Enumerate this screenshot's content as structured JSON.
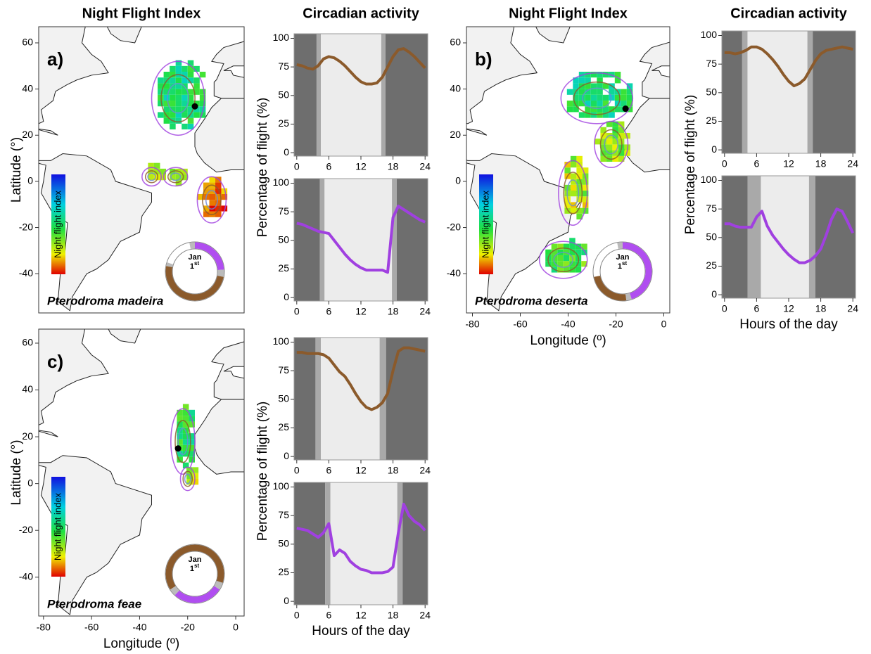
{
  "chart_data": [
    {
      "type": "map",
      "title": "Night Flight Index",
      "panel_label": "a)",
      "species": "Pterodroma madeira",
      "colorbar_label": "Night flight index",
      "ring_label": [
        "Jan",
        "1",
        "st"
      ],
      "ylabel": "Latitude (°)",
      "xlim": [
        -82,
        3.5
      ],
      "ylim": [
        -57,
        67
      ],
      "yticks": [
        60,
        40,
        20,
        0,
        -20,
        -40
      ]
    },
    {
      "type": "line",
      "title": "Circadian activity",
      "ylabel": "Percentage of flight (%)",
      "xlim": [
        -0.5,
        24.5
      ],
      "ylim": [
        -3,
        104
      ],
      "xticks": [
        0,
        6,
        12,
        18,
        24
      ],
      "yticks": [
        0,
        25,
        50,
        75,
        100
      ],
      "twilight": [
        3.7,
        4.5,
        15.8,
        16.6
      ],
      "x": [
        0,
        1,
        2,
        3,
        4,
        5,
        6,
        7,
        8,
        9,
        10,
        11,
        12,
        13,
        14,
        15,
        16,
        17,
        18,
        19,
        20,
        21,
        22,
        23,
        24
      ],
      "series": [
        {
          "color": "#8b5a2b",
          "values": [
            77,
            76,
            74,
            73,
            76,
            82,
            84,
            83,
            80,
            76,
            71,
            66,
            62,
            60,
            60,
            61,
            66,
            75,
            84,
            90,
            91,
            88,
            84,
            79,
            74
          ]
        }
      ]
    },
    {
      "type": "line",
      "xlim": [
        -0.5,
        24.5
      ],
      "ylim": [
        -3,
        104
      ],
      "xticks": [
        0,
        6,
        12,
        18,
        24
      ],
      "yticks": [
        0,
        25,
        50,
        75,
        100
      ],
      "twilight": [
        4.3,
        5.2,
        17.8,
        18.7
      ],
      "x": [
        0,
        1,
        2,
        3,
        4,
        5,
        6,
        7,
        8,
        9,
        10,
        11,
        12,
        13,
        14,
        15,
        16,
        17,
        18,
        19,
        20,
        21,
        22,
        23,
        24
      ],
      "series": [
        {
          "color": "#a040e0",
          "values": [
            65,
            64,
            62,
            60,
            58,
            57,
            56,
            50,
            44,
            38,
            33,
            29,
            26,
            24,
            24,
            24,
            24,
            22,
            70,
            80,
            77,
            74,
            71,
            68,
            66
          ]
        }
      ]
    },
    {
      "type": "map",
      "title": "Night Flight Index",
      "panel_label": "b)",
      "species": "Pterodroma deserta",
      "colorbar_label": "Night flight index",
      "ring_label": [
        "Jan",
        "1",
        "st"
      ],
      "xlabel": "Longitude (º)",
      "xlim": [
        -82.5,
        2.5
      ],
      "ylim": [
        -57,
        67
      ],
      "xticks": [
        -80,
        -60,
        -40,
        -20,
        0
      ],
      "yticks": [
        60,
        40,
        20,
        0,
        -20,
        -40
      ]
    },
    {
      "type": "line",
      "title": "Circadian activity",
      "ylabel": "Percentage of flight (%)",
      "xlim": [
        -0.5,
        24.5
      ],
      "ylim": [
        -3,
        104
      ],
      "xticks": [
        0,
        6,
        12,
        18,
        24
      ],
      "yticks": [
        0,
        25,
        50,
        75,
        100
      ],
      "twilight": [
        3.3,
        4.3,
        15.5,
        16.5
      ],
      "x": [
        0,
        1,
        2,
        3,
        4,
        5,
        6,
        7,
        8,
        9,
        10,
        11,
        12,
        13,
        14,
        15,
        16,
        17,
        18,
        19,
        20,
        21,
        22,
        23,
        24
      ],
      "series": [
        {
          "color": "#8b5a2b",
          "values": [
            85,
            85,
            84,
            85,
            87,
            90,
            90,
            88,
            84,
            79,
            73,
            66,
            60,
            56,
            58,
            62,
            70,
            78,
            84,
            87,
            88,
            89,
            90,
            89,
            88
          ]
        }
      ]
    },
    {
      "type": "line",
      "xlabel": "Hours of the day",
      "xlim": [
        -0.5,
        24.5
      ],
      "ylim": [
        -3,
        104
      ],
      "xticks": [
        0,
        6,
        12,
        18,
        24
      ],
      "yticks": [
        0,
        25,
        50,
        75,
        100
      ],
      "twilight": [
        4.3,
        6.8,
        15.8,
        17.0
      ],
      "x": [
        0,
        1,
        2,
        3,
        4,
        5,
        6,
        7,
        8,
        9,
        10,
        11,
        12,
        13,
        14,
        15,
        16,
        17,
        18,
        19,
        20,
        21,
        22,
        23,
        24
      ],
      "series": [
        {
          "color": "#a040e0",
          "values": [
            62,
            62,
            60,
            59,
            59,
            59,
            68,
            73,
            60,
            52,
            46,
            40,
            35,
            31,
            28,
            28,
            30,
            34,
            40,
            52,
            66,
            75,
            73,
            64,
            54
          ]
        }
      ]
    },
    {
      "type": "map",
      "panel_label": "c)",
      "species": "Pterodroma feae",
      "colorbar_label": "Night flight index",
      "ring_label": [
        "Jan",
        "1",
        "st"
      ],
      "ylabel": "Latitude (°)",
      "xlabel": "Longitude (º)",
      "xlim": [
        -82,
        3.5
      ],
      "ylim": [
        -56.6,
        66
      ],
      "xticks": [
        -80,
        -60,
        -40,
        -20,
        0
      ],
      "yticks": [
        60,
        40,
        20,
        0,
        -20,
        -40
      ]
    },
    {
      "type": "line",
      "ylabel": "Percentage of flight (%)",
      "xlim": [
        -0.5,
        24.5
      ],
      "ylim": [
        -3,
        104
      ],
      "xticks": [
        0,
        6,
        12,
        18,
        24
      ],
      "yticks": [
        0,
        25,
        50,
        75,
        100
      ],
      "twilight": [
        3.5,
        4.5,
        15.5,
        16.7
      ],
      "x": [
        0,
        1,
        2,
        3,
        4,
        5,
        6,
        7,
        8,
        9,
        10,
        11,
        12,
        13,
        14,
        15,
        16,
        17,
        18,
        19,
        20,
        21,
        22,
        23,
        24
      ],
      "series": [
        {
          "color": "#8b5a2b",
          "values": [
            91,
            91,
            90,
            90,
            90,
            89,
            86,
            80,
            74,
            70,
            63,
            55,
            48,
            43,
            41,
            43,
            47,
            55,
            75,
            92,
            95,
            95,
            94,
            93,
            92
          ]
        }
      ]
    },
    {
      "type": "line",
      "xlabel": "Hours of the day",
      "xlim": [
        -0.5,
        24.5
      ],
      "ylim": [
        -3,
        104
      ],
      "xticks": [
        0,
        6,
        12,
        18,
        24
      ],
      "yticks": [
        0,
        25,
        50,
        75,
        100
      ],
      "twilight": [
        5.3,
        6.3,
        18.8,
        19.8
      ],
      "x": [
        0,
        1,
        2,
        3,
        4,
        5,
        6,
        7,
        8,
        9,
        10,
        11,
        12,
        13,
        14,
        15,
        16,
        17,
        18,
        19,
        20,
        21,
        22,
        23,
        24
      ],
      "series": [
        {
          "color": "#a040e0",
          "values": [
            64,
            63,
            62,
            59,
            56,
            60,
            68,
            40,
            45,
            42,
            35,
            31,
            28,
            27,
            25,
            25,
            25,
            26,
            30,
            60,
            85,
            75,
            70,
            67,
            62
          ]
        }
      ]
    }
  ]
}
